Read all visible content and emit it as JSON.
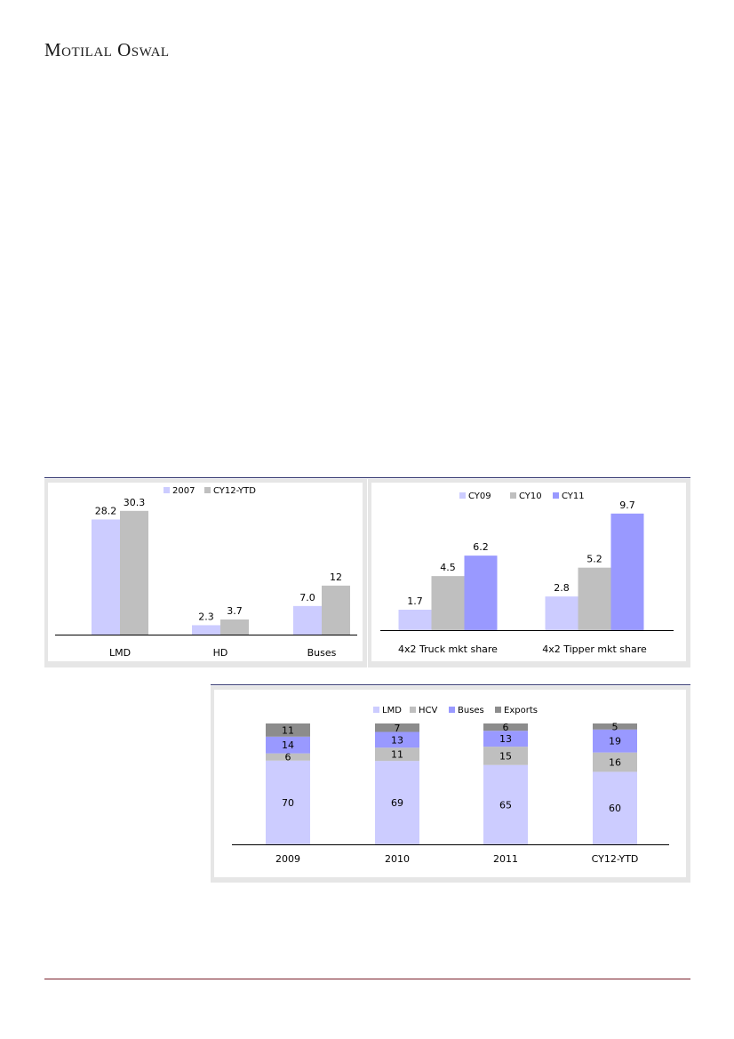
{
  "header": {
    "brand": "Motilal Oswal"
  },
  "colors": {
    "rule_top": "#2b2f6b",
    "rule_footer": "#7a1f2b",
    "light_purple": "#ccccff",
    "grey": "#bfbfbf",
    "mid_purple": "#9999ff",
    "dark_grey": "#8c8c8c",
    "panel_bg": "#e6e6e6"
  },
  "chart_data": [
    {
      "id": "chart1",
      "type": "bar",
      "categories": [
        "LMD",
        "HD",
        "Buses"
      ],
      "series": [
        {
          "name": "2007",
          "values": [
            28.2,
            2.3,
            7.0
          ],
          "labels": [
            "28.2",
            "2.3",
            "7.0"
          ],
          "color": "#ccccff"
        },
        {
          "name": "CY12-YTD",
          "values": [
            30.3,
            3.7,
            12
          ],
          "labels": [
            "30.3",
            "3.7",
            "12"
          ],
          "color": "#bfbfbf"
        }
      ],
      "ylim": [
        0,
        32
      ],
      "legend": "top"
    },
    {
      "id": "chart2",
      "type": "bar",
      "categories": [
        "4x2 Truck mkt share",
        "4x2 Tipper mkt share"
      ],
      "series": [
        {
          "name": "CY09",
          "values": [
            1.7,
            2.8
          ],
          "labels": [
            "1.7",
            "2.8"
          ],
          "color": "#ccccff"
        },
        {
          "name": "CY10",
          "values": [
            4.5,
            5.2
          ],
          "labels": [
            "4.5",
            "5.2"
          ],
          "color": "#bfbfbf"
        },
        {
          "name": "CY11",
          "values": [
            6.2,
            9.7
          ],
          "labels": [
            "6.2",
            "9.7"
          ],
          "color": "#9999ff"
        }
      ],
      "ylim": [
        0,
        10.5
      ],
      "legend": "top"
    },
    {
      "id": "chart3",
      "type": "bar",
      "stacked": true,
      "categories": [
        "2009",
        "2010",
        "2011",
        "CY12-YTD"
      ],
      "series": [
        {
          "name": "LMD",
          "values": [
            70,
            69,
            65,
            60
          ],
          "color": "#ccccff"
        },
        {
          "name": "HCV",
          "values": [
            6,
            11,
            15,
            16
          ],
          "color": "#bfbfbf"
        },
        {
          "name": "Buses",
          "values": [
            14,
            13,
            13,
            19
          ],
          "color": "#9999ff"
        },
        {
          "name": "Exports",
          "values": [
            11,
            7,
            6,
            5
          ],
          "color": "#8c8c8c"
        }
      ],
      "ylim": [
        0,
        100
      ],
      "legend": "top"
    }
  ]
}
